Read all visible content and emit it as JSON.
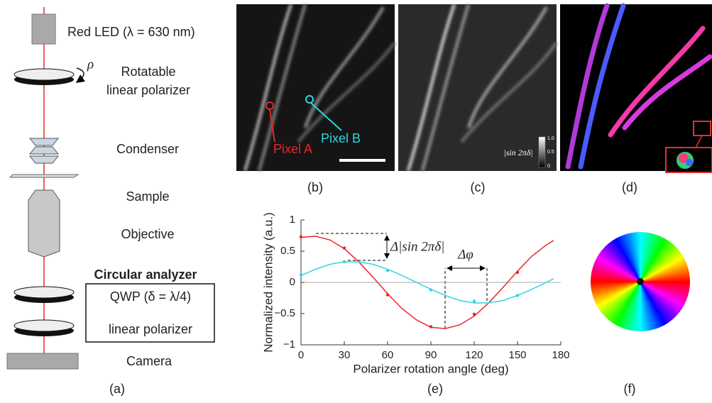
{
  "panel_a": {
    "led": "Red LED (λ = 630 nm)",
    "rho": "ρ",
    "polarizer": [
      "Rotatable",
      "linear polarizer"
    ],
    "condenser": "Condenser",
    "sample": "Sample",
    "objective": "Objective",
    "analyzer": "Circular analyzer",
    "qwp": "QWP (δ = λ/4)",
    "analyzer_polarizer": "linear polarizer",
    "camera": "Camera",
    "label": "(a)"
  },
  "panel_b": {
    "pixel_a": "Pixel A",
    "pixel_b": "Pixel B",
    "label": "(b)"
  },
  "panel_c": {
    "colorbar_title": "|sin 2πδ|",
    "colorbar_ticks": [
      "1.0",
      "0.5",
      "0"
    ],
    "label": "(c)"
  },
  "panel_d": {
    "label": "(d)"
  },
  "chart_data": {
    "type": "line",
    "xlabel": "Polarizer rotation angle (deg)",
    "ylabel": "Normalized intensity (a.u.)",
    "x": [
      0,
      30,
      60,
      90,
      120,
      150
    ],
    "series": [
      {
        "color": "#e8262a",
        "values": [
          0.73,
          0.55,
          -0.2,
          -0.71,
          -0.51,
          0.16
        ],
        "fit": {
          "x": [
            0,
            10,
            20,
            30,
            40,
            50,
            60,
            70,
            80,
            90,
            100,
            110,
            120,
            130,
            140,
            150,
            160,
            170,
            175
          ],
          "values": [
            0.72,
            0.74,
            0.68,
            0.54,
            0.33,
            0.08,
            -0.18,
            -0.42,
            -0.6,
            -0.72,
            -0.74,
            -0.68,
            -0.54,
            -0.33,
            -0.08,
            0.18,
            0.42,
            0.6,
            0.67
          ]
        }
      },
      {
        "color": "#2fd6e0",
        "values": [
          0.12,
          0.33,
          0.19,
          -0.12,
          -0.3,
          -0.21
        ],
        "fit": {
          "x": [
            0,
            10,
            20,
            30,
            40,
            50,
            60,
            70,
            80,
            90,
            100,
            110,
            120,
            130,
            140,
            150,
            160,
            170,
            175
          ],
          "values": [
            0.11,
            0.21,
            0.29,
            0.33,
            0.33,
            0.29,
            0.21,
            0.11,
            0,
            -0.11,
            -0.21,
            -0.29,
            -0.33,
            -0.33,
            -0.29,
            -0.21,
            -0.11,
            0,
            0.06
          ]
        }
      }
    ],
    "xlim": [
      0,
      180
    ],
    "xticks": [
      0,
      30,
      60,
      90,
      120,
      150,
      180
    ],
    "ylim": [
      -1,
      1
    ],
    "yticks": [
      {
        "value": -1,
        "label": "−1"
      },
      {
        "value": -0.5,
        "label": "−0.5"
      },
      0,
      0.5,
      1
    ],
    "annotations": [
      "Δ|sin 2πδ|",
      "Δφ"
    ],
    "panel_label": "(e)"
  },
  "panel_f": {
    "label": "(f)"
  }
}
